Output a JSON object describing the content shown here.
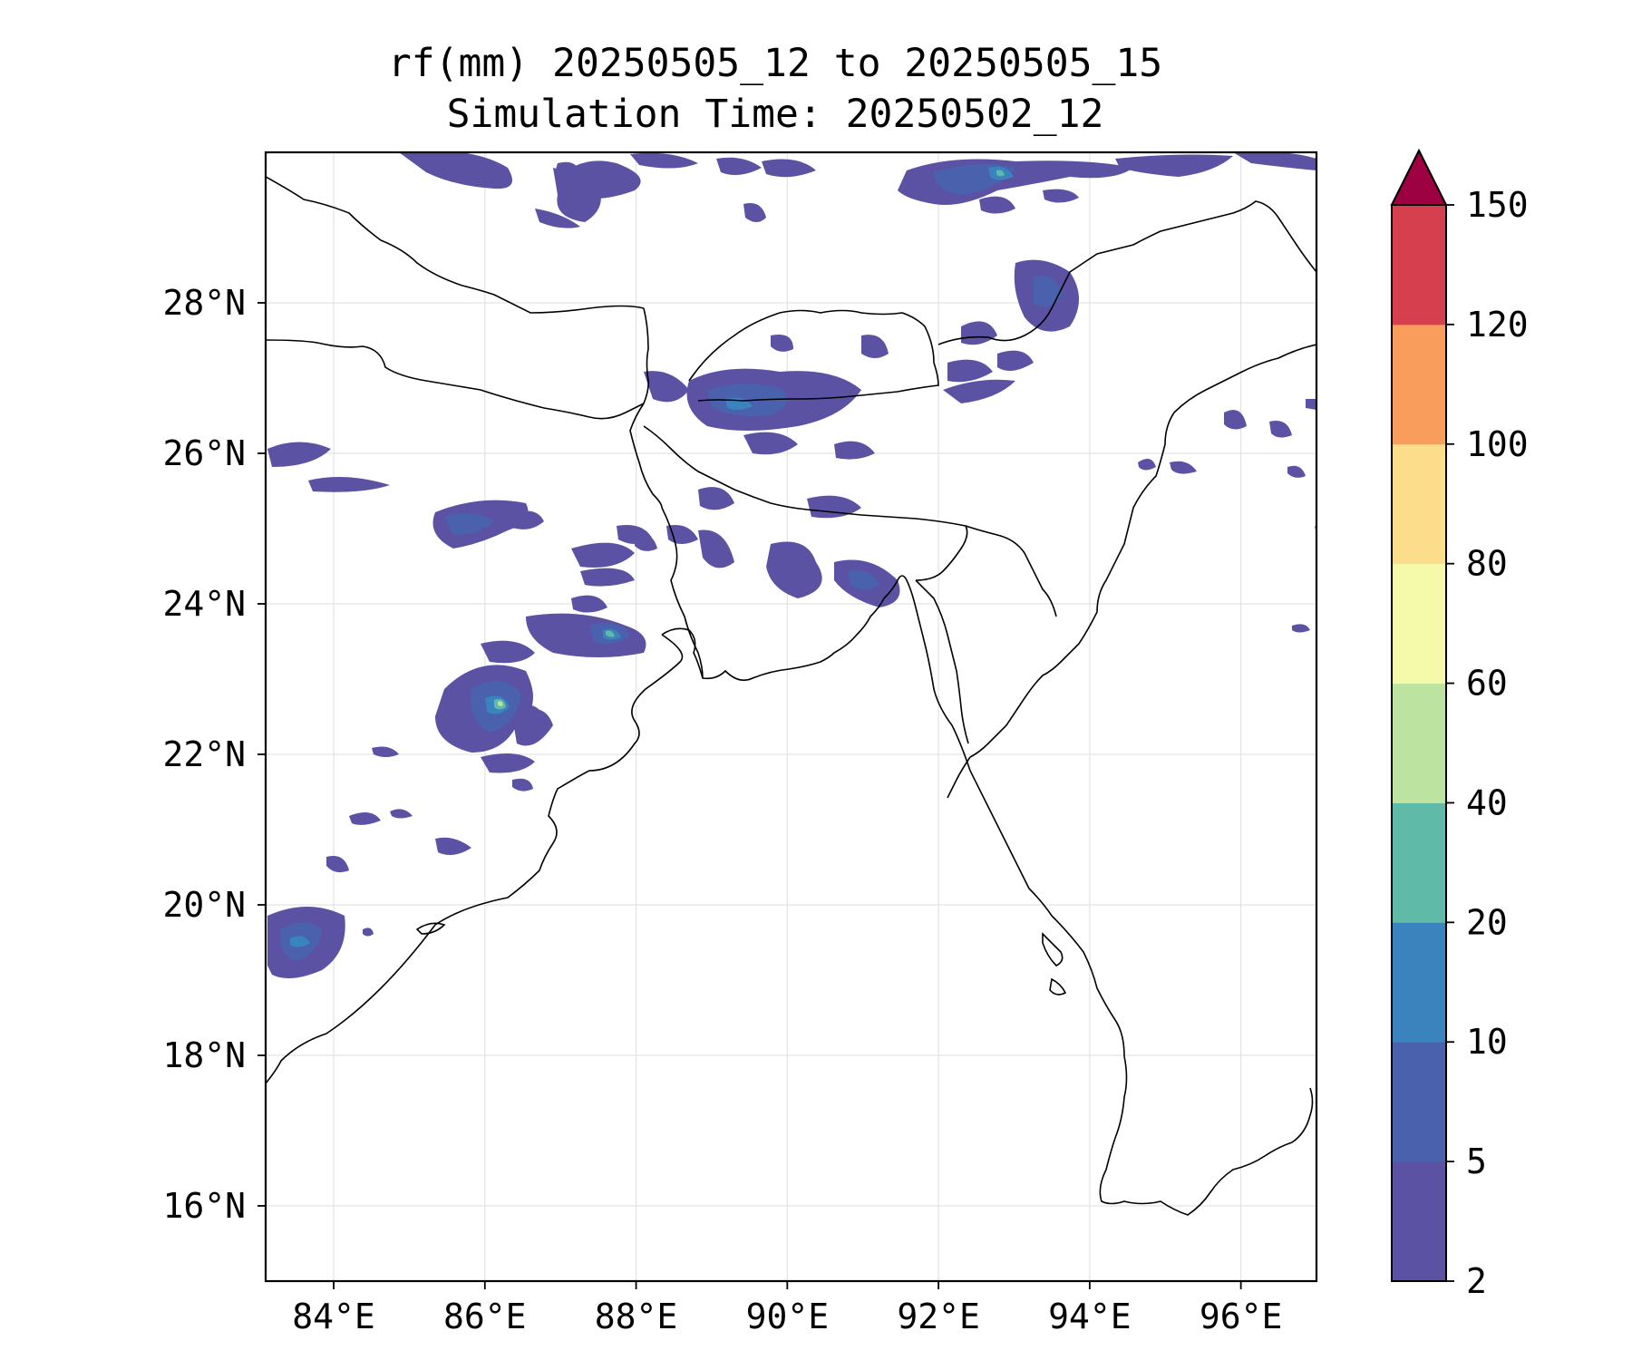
{
  "title": {
    "line1": "rf(mm) 20250505_12 to 20250505_15",
    "line2": "Simulation Time: 20250502_12"
  },
  "map": {
    "lon_range": [
      83.1,
      97.0
    ],
    "lat_range": [
      15.0,
      30.0
    ],
    "lon_ticks": [
      {
        "value": 84,
        "label": "84°E"
      },
      {
        "value": 86,
        "label": "86°E"
      },
      {
        "value": 88,
        "label": "88°E"
      },
      {
        "value": 90,
        "label": "90°E"
      },
      {
        "value": 92,
        "label": "92°E"
      },
      {
        "value": 94,
        "label": "94°E"
      },
      {
        "value": 96,
        "label": "96°E"
      }
    ],
    "lat_ticks": [
      {
        "value": 16,
        "label": "16°N"
      },
      {
        "value": 18,
        "label": "18°N"
      },
      {
        "value": 20,
        "label": "20°N"
      },
      {
        "value": 22,
        "label": "22°N"
      },
      {
        "value": 24,
        "label": "24°N"
      },
      {
        "value": 26,
        "label": "26°N"
      },
      {
        "value": 28,
        "label": "28°N"
      }
    ],
    "gridlines": true
  },
  "colorbar": {
    "levels": [
      "2",
      "5",
      "10",
      "20",
      "40",
      "60",
      "80",
      "100",
      "120",
      "150"
    ],
    "colors": [
      "#5b52a3",
      "#4a62ad",
      "#3a83bc",
      "#5fbaa8",
      "#bde3a1",
      "#f5faab",
      "#fbdd8c",
      "#f89d5c",
      "#d6404e",
      "#9e0142"
    ],
    "extend": "max"
  }
}
